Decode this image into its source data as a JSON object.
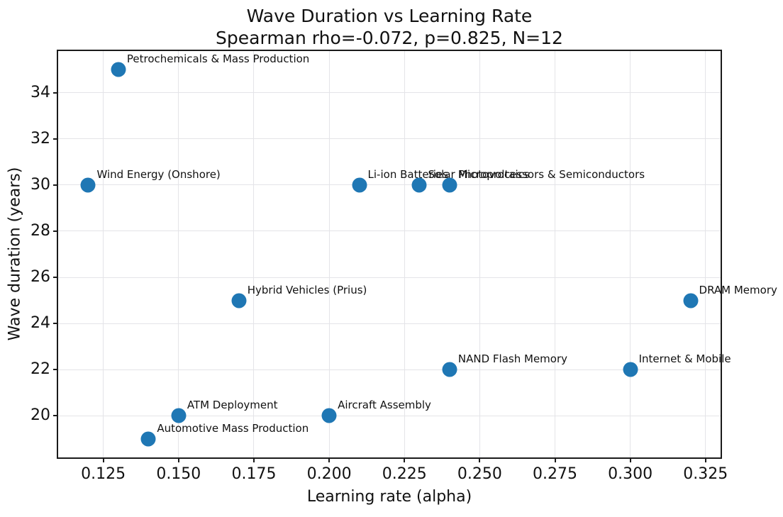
{
  "chart_data": {
    "type": "scatter",
    "title": "Wave Duration vs Learning Rate",
    "subtitle": "Spearman rho=-0.072, p=0.825, N=12",
    "xlabel": "Learning rate (alpha)",
    "ylabel": "Wave duration (years)",
    "xlim": [
      0.11,
      0.33
    ],
    "ylim": [
      18.2,
      35.8
    ],
    "xtick_values": [
      0.125,
      0.15,
      0.175,
      0.2,
      0.225,
      0.25,
      0.275,
      0.3,
      0.325
    ],
    "xtick_labels": [
      "0.125",
      "0.150",
      "0.175",
      "0.200",
      "0.225",
      "0.250",
      "0.275",
      "0.300",
      "0.325"
    ],
    "ytick_values": [
      20,
      22,
      24,
      26,
      28,
      30,
      32,
      34
    ],
    "ytick_labels": [
      "20",
      "22",
      "24",
      "26",
      "28",
      "30",
      "32",
      "34"
    ],
    "grid": true,
    "legend": "none",
    "stats": {
      "spearman_rho": -0.072,
      "p_value": 0.825,
      "n": 12
    },
    "points": [
      {
        "label": "Petrochemicals & Mass Production",
        "x": 0.13,
        "y": 35
      },
      {
        "label": "Wind Energy (Onshore)",
        "x": 0.12,
        "y": 30
      },
      {
        "label": "Li-ion Batteries",
        "x": 0.21,
        "y": 30
      },
      {
        "label": "Solar Photovoltaics",
        "x": 0.23,
        "y": 30
      },
      {
        "label": "Microprocessors & Semiconductors",
        "x": 0.24,
        "y": 30
      },
      {
        "label": "Hybrid Vehicles (Prius)",
        "x": 0.17,
        "y": 25
      },
      {
        "label": "DRAM Memory",
        "x": 0.32,
        "y": 25
      },
      {
        "label": "NAND Flash Memory",
        "x": 0.24,
        "y": 22
      },
      {
        "label": "Internet & Mobile",
        "x": 0.3,
        "y": 22
      },
      {
        "label": "ATM Deployment",
        "x": 0.15,
        "y": 20
      },
      {
        "label": "Aircraft Assembly",
        "x": 0.2,
        "y": 20
      },
      {
        "label": "Automotive Mass Production",
        "x": 0.14,
        "y": 19
      }
    ]
  },
  "colors": {
    "marker": "#1f77b4",
    "grid": "#e4e4e8",
    "spine": "#1a1a1a",
    "text": "#111111",
    "background": "#ffffff"
  }
}
